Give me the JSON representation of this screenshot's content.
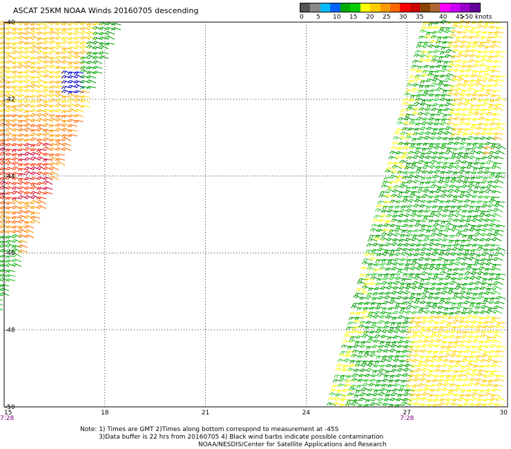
{
  "title": "ASCAT 25KM NOAA Winds 20160705 descending",
  "legend": {
    "labels": [
      "0",
      "5",
      "10",
      "15",
      "20",
      "25",
      "30",
      "35",
      "40",
      "45",
      ">50 knots"
    ],
    "colors": [
      "#555555",
      "#888888",
      "#00bbff",
      "#0066ff",
      "#00aa00",
      "#00cc00",
      "#ffff00",
      "#ffcc00",
      "#ff9900",
      "#ff6600",
      "#ff0000",
      "#cc0000",
      "#884400",
      "#aa6633",
      "#ff00ff",
      "#cc00ff",
      "#9900cc",
      "#660099"
    ]
  },
  "map": {
    "lon_ticks": [
      "15",
      "18",
      "21",
      "24",
      "27",
      "30"
    ],
    "lat_ticks": [
      "-40",
      "-42",
      "-44",
      "-46",
      "-48",
      "-50"
    ],
    "times": [
      {
        "label": "7:28"
      },
      {
        "label": "7:28"
      }
    ]
  },
  "notes": {
    "line1": "Note: 1) Times are GMT 2)Times along bottom correspond to measurement at -45S",
    "line2": "3)Data buffer is 22 hrs from 20160705 4) Black wind barbs indicate possible contamination",
    "line3": "NOAA/NESDIS/Center for Satellite Applications and Research"
  }
}
